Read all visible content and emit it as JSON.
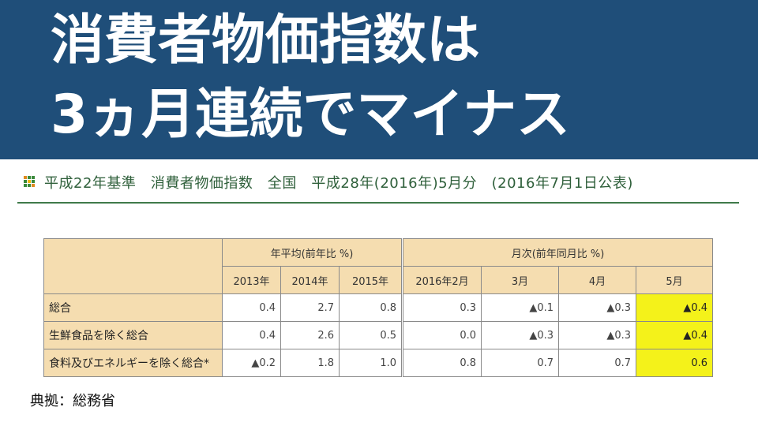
{
  "headline": {
    "line1": "消費者物価指数は",
    "line2": "3ヵ月連続でマイナス"
  },
  "subtitle": {
    "icon": "grid-icon",
    "text": "平成22年基準　消費者物価指数　全国　平成28年(2016年)5月分　(2016年7月1日公表)"
  },
  "table": {
    "group_headers": {
      "annual": "年平均(前年比 %)",
      "monthly": "月次(前年同月比 %)"
    },
    "columns": [
      "2013年",
      "2014年",
      "2015年",
      "2016年2月",
      "3月",
      "4月",
      "5月"
    ],
    "rows": [
      {
        "label": "総合",
        "values": [
          "0.4",
          "2.7",
          "0.8",
          "0.3",
          "▲0.1",
          "▲0.3",
          "▲0.4"
        ]
      },
      {
        "label": "生鮮食品を除く総合",
        "values": [
          "0.4",
          "2.6",
          "0.5",
          "0.0",
          "▲0.3",
          "▲0.3",
          "▲0.4"
        ]
      },
      {
        "label": "食料及びエネルギーを除く総合*",
        "values": [
          "▲0.2",
          "1.8",
          "1.0",
          "0.8",
          "0.7",
          "0.7",
          "0.6"
        ]
      }
    ],
    "highlight_color": "#f4f21a",
    "header_color": "#f5ddb0"
  },
  "source": "典拠：総務省",
  "colors": {
    "banner": "#1f4e79",
    "subtitle_text": "#2e5f3a",
    "icon_cells": [
      "#e08a1e",
      "#3a8a3a",
      "#3a8a3a",
      "#3a8a3a",
      "#f0b400",
      "#3a8a3a",
      "#3a8a3a",
      "#3a8a3a",
      "#e08a1e"
    ]
  }
}
